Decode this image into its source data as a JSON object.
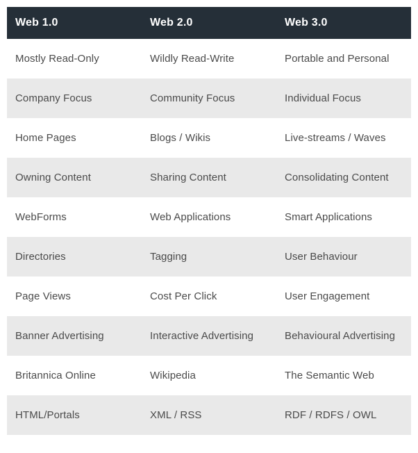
{
  "table": {
    "type": "table",
    "columns": [
      "Web 1.0",
      "Web 2.0",
      "Web 3.0"
    ],
    "rows": [
      [
        "Mostly Read-Only",
        "Wildly Read-Write",
        "Portable and Personal"
      ],
      [
        "Company Focus",
        "Community Focus",
        "Individual Focus"
      ],
      [
        "Home Pages",
        "Blogs / Wikis",
        "Live-streams / Waves"
      ],
      [
        "Owning Content",
        "Sharing Content",
        "Consolidating Content"
      ],
      [
        "WebForms",
        "Web Applications",
        "Smart Applications"
      ],
      [
        "Directories",
        "Tagging",
        "User Behaviour"
      ],
      [
        "Page Views",
        "Cost Per Click",
        "User Engagement"
      ],
      [
        "Banner Advertising",
        "Interactive Advertising",
        "Behavioural Advertising"
      ],
      [
        "Britannica Online",
        "Wikipedia",
        "The Semantic Web"
      ],
      [
        "HTML/Portals",
        "XML / RSS",
        "RDF / RDFS / OWL"
      ]
    ],
    "column_widths": [
      "33.33%",
      "33.33%",
      "33.33%"
    ],
    "styling": {
      "header_bg": "#252f38",
      "header_text": "#ffffff",
      "header_fontsize": 16,
      "header_fontweight": 600,
      "row_odd_bg": "#ffffff",
      "row_odd_text": "#4a4a4a",
      "row_even_bg": "#e9e9e9",
      "row_even_text": "#4a4a4a",
      "cell_fontsize": 15,
      "cell_padding_v": 20,
      "cell_padding_h": 12,
      "header_padding_v": 14,
      "header_padding_h": 12
    }
  }
}
